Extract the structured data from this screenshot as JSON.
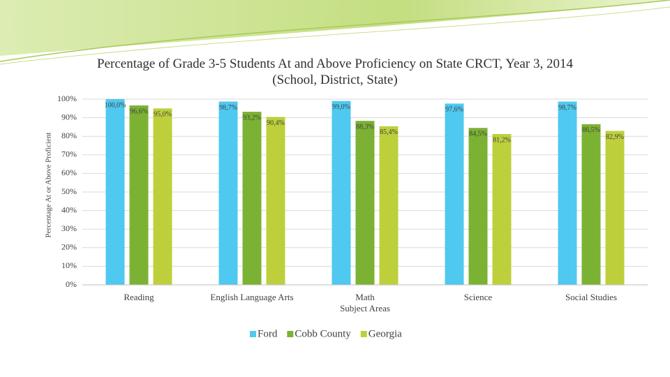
{
  "chart_data": {
    "type": "bar",
    "title": "Percentage of Grade 3-5 Students At and Above Proficiency on State CRCT, Year 3, 2014 (School, District, State)",
    "y_label": "Percentage At or Above Proficient",
    "x_label": "Subject Areas",
    "categories": [
      "Reading",
      "English Language Arts",
      "Math",
      "Science",
      "Social Studies"
    ],
    "series": [
      {
        "name": "Ford",
        "color": "#4fc9f0",
        "values": [
          100.0,
          98.7,
          99.0,
          97.6,
          98.7
        ],
        "value_labels": [
          "100,0%",
          "98,7%",
          "99,0%",
          "97,6%",
          "98,7%"
        ]
      },
      {
        "name": "Cobb County",
        "color": "#7cb234",
        "values": [
          96.6,
          93.2,
          88.3,
          84.5,
          86.5
        ],
        "value_labels": [
          "96,6%",
          "93,2%",
          "88,3%",
          "84,5%",
          "86,5%"
        ]
      },
      {
        "name": "Georgia",
        "color": "#bdd03c",
        "values": [
          95.0,
          90.4,
          85.4,
          81.2,
          82.9
        ],
        "value_labels": [
          "95,0%",
          "90,4%",
          "85,4%",
          "81,2%",
          "82,9%"
        ]
      }
    ],
    "ylim": [
      0,
      100
    ],
    "yticks": [
      {
        "value": 0,
        "label": "0%"
      },
      {
        "value": 10,
        "label": "10%"
      },
      {
        "value": 20,
        "label": "20%"
      },
      {
        "value": 30,
        "label": "30%"
      },
      {
        "value": 40,
        "label": "40%"
      },
      {
        "value": 50,
        "label": "50%"
      },
      {
        "value": 60,
        "label": "60%"
      },
      {
        "value": 70,
        "label": "70%"
      },
      {
        "value": 80,
        "label": "80%"
      },
      {
        "value": 90,
        "label": "90%"
      },
      {
        "value": 100,
        "label": "100%"
      }
    ],
    "grid": true,
    "legend": "bottom"
  }
}
